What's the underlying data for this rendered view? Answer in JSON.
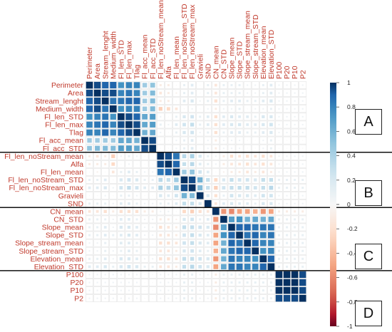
{
  "chart_data": {
    "type": "heatmap",
    "variables": [
      "Perimeter",
      "Area",
      "Stream_lenght",
      "Medium_width",
      "Fl_len_STD",
      "Fl_len_max",
      "Tlag",
      "Fl_acc_mean",
      "Fl_acc_STD",
      "Fl_len_noStream_mean",
      "Alfa",
      "Fl_len_mean",
      "Fl_len_noStream_STD",
      "Fl_len_noStream_max",
      "Gravieli",
      "SND",
      "CN_mean",
      "CN_STD",
      "Slope_mean",
      "Slope_STD",
      "Slope_stream_mean",
      "Slope_stream_STD",
      "Elevation_mean",
      "Elevation_STD",
      "P100",
      "P20",
      "P10",
      "P2"
    ],
    "groups": [
      {
        "label": "A",
        "members": [
          "Perimeter",
          "Area",
          "Stream_lenght",
          "Medium_width",
          "Fl_len_STD",
          "Fl_len_max",
          "Tlag",
          "Fl_acc_mean",
          "Fl_acc_STD"
        ]
      },
      {
        "label": "B",
        "members": [
          "Fl_len_noStream_mean",
          "Alfa",
          "Fl_len_mean",
          "Fl_len_noStream_STD",
          "Fl_len_noStream_max",
          "Gravieli",
          "SND"
        ]
      },
      {
        "label": "C",
        "members": [
          "CN_mean",
          "CN_STD",
          "Slope_mean",
          "Slope_STD",
          "Slope_stream_mean",
          "Slope_stream_STD",
          "Elevation_mean",
          "Elevation_STD"
        ]
      },
      {
        "label": "D",
        "members": [
          "P100",
          "P20",
          "P10",
          "P2"
        ]
      }
    ],
    "colorbar": {
      "range": [
        -1,
        1
      ],
      "ticks": [
        "1",
        "0.8",
        "0.6",
        "0.4",
        "0.2",
        "0",
        "-0.2",
        "-0.4",
        "-0.6",
        "-0.8",
        "-1"
      ],
      "low_color": "#67001f",
      "mid_color": "#f7f7f7",
      "high_color": "#053061"
    },
    "shape": "square sized by |r|",
    "label_color": "#c0392b",
    "correlations_lower_triangle": [
      [
        1.0
      ],
      [
        0.95,
        1.0
      ],
      [
        0.9,
        0.95,
        1.0
      ],
      [
        0.9,
        0.95,
        0.85,
        1.0
      ],
      [
        0.75,
        0.8,
        0.85,
        0.75,
        1.0
      ],
      [
        0.8,
        0.85,
        0.9,
        0.8,
        0.95,
        1.0
      ],
      [
        0.8,
        0.8,
        0.9,
        0.8,
        0.9,
        0.95,
        1.0
      ],
      [
        0.45,
        0.45,
        0.45,
        0.45,
        0.65,
        0.65,
        0.6,
        1.0
      ],
      [
        0.5,
        0.55,
        0.55,
        0.55,
        0.7,
        0.7,
        0.65,
        0.95,
        1.0
      ],
      [
        -0.1,
        -0.15,
        -0.1,
        -0.3,
        0.05,
        0.1,
        0.05,
        0.0,
        0.0,
        1.0
      ],
      [
        -0.1,
        -0.1,
        -0.1,
        -0.25,
        0.0,
        0.05,
        0.0,
        0.0,
        0.0,
        0.95,
        1.0
      ],
      [
        0.0,
        -0.05,
        0.0,
        -0.15,
        0.1,
        0.15,
        0.1,
        0.05,
        0.05,
        0.85,
        0.9,
        1.0
      ],
      [
        0.1,
        0.1,
        0.15,
        0.0,
        0.2,
        0.25,
        0.2,
        0.1,
        0.1,
        0.35,
        0.3,
        0.45,
        1.0
      ],
      [
        0.15,
        0.15,
        0.2,
        0.05,
        0.25,
        0.3,
        0.25,
        0.15,
        0.15,
        0.4,
        0.35,
        0.5,
        0.95,
        1.0
      ],
      [
        0.0,
        0.0,
        0.05,
        0.0,
        0.1,
        0.1,
        0.05,
        0.0,
        0.0,
        0.2,
        0.15,
        0.25,
        0.6,
        0.55,
        1.0
      ],
      [
        0.1,
        0.1,
        0.1,
        0.05,
        0.15,
        0.15,
        0.1,
        0.05,
        0.05,
        0.1,
        0.1,
        0.15,
        0.3,
        0.3,
        0.2,
        1.0
      ],
      [
        -0.15,
        -0.15,
        -0.2,
        -0.1,
        -0.2,
        -0.2,
        -0.2,
        -0.1,
        -0.1,
        0.05,
        0.05,
        0.0,
        -0.25,
        -0.3,
        -0.2,
        -0.15,
        1.0
      ],
      [
        0.1,
        0.1,
        0.1,
        0.05,
        0.15,
        0.15,
        0.1,
        0.05,
        0.05,
        -0.1,
        -0.1,
        -0.05,
        0.2,
        0.25,
        0.1,
        0.15,
        -0.55,
        1.0
      ],
      [
        0.1,
        0.1,
        0.15,
        0.05,
        0.2,
        0.2,
        0.15,
        0.05,
        0.05,
        -0.2,
        -0.15,
        -0.1,
        0.3,
        0.3,
        0.25,
        0.2,
        -0.6,
        0.7,
        1.0
      ],
      [
        0.1,
        0.1,
        0.15,
        0.1,
        0.15,
        0.2,
        0.15,
        0.05,
        0.05,
        -0.15,
        -0.15,
        -0.1,
        0.25,
        0.3,
        0.2,
        0.15,
        -0.5,
        0.75,
        0.9,
        1.0
      ],
      [
        0.05,
        0.05,
        0.1,
        0.0,
        0.15,
        0.15,
        0.1,
        0.0,
        0.0,
        -0.2,
        -0.2,
        -0.15,
        0.25,
        0.3,
        0.2,
        0.15,
        -0.5,
        0.6,
        0.9,
        0.85,
        1.0
      ],
      [
        0.05,
        0.05,
        0.1,
        0.05,
        0.1,
        0.15,
        0.1,
        0.0,
        0.0,
        -0.15,
        -0.15,
        -0.1,
        0.2,
        0.25,
        0.15,
        0.1,
        -0.45,
        0.65,
        0.85,
        0.9,
        0.9,
        1.0
      ],
      [
        0.1,
        0.1,
        0.15,
        0.05,
        0.2,
        0.2,
        0.15,
        0.05,
        0.05,
        -0.2,
        -0.2,
        -0.15,
        0.3,
        0.3,
        0.25,
        0.2,
        -0.55,
        0.6,
        0.85,
        0.8,
        0.8,
        0.75,
        1.0
      ],
      [
        0.15,
        0.15,
        0.2,
        0.1,
        0.2,
        0.25,
        0.2,
        0.1,
        0.1,
        -0.15,
        -0.15,
        -0.1,
        0.3,
        0.35,
        0.25,
        0.2,
        -0.5,
        0.65,
        0.85,
        0.85,
        0.8,
        0.8,
        0.9,
        1.0
      ],
      [
        0.05,
        0.05,
        0.05,
        0.05,
        0.05,
        0.05,
        0.05,
        0.0,
        0.0,
        0.05,
        0.05,
        0.05,
        0.1,
        0.1,
        0.05,
        0.05,
        -0.1,
        0.1,
        0.1,
        0.1,
        0.1,
        0.1,
        0.1,
        0.1,
        1.0
      ],
      [
        0.05,
        0.05,
        0.05,
        0.05,
        0.05,
        0.05,
        0.05,
        0.0,
        0.0,
        0.05,
        0.05,
        0.05,
        0.1,
        0.1,
        0.05,
        0.05,
        -0.1,
        0.1,
        0.1,
        0.1,
        0.1,
        0.1,
        0.1,
        0.1,
        1.0,
        1.0
      ],
      [
        0.05,
        0.05,
        0.05,
        0.05,
        0.05,
        0.05,
        0.05,
        0.0,
        0.0,
        0.05,
        0.05,
        0.05,
        0.1,
        0.1,
        0.05,
        0.05,
        -0.1,
        0.1,
        0.1,
        0.1,
        0.1,
        0.1,
        0.1,
        0.1,
        1.0,
        1.0,
        1.0
      ],
      [
        0.05,
        0.05,
        0.05,
        0.05,
        0.05,
        0.05,
        0.05,
        0.0,
        0.0,
        0.05,
        0.05,
        0.05,
        0.1,
        0.1,
        0.05,
        0.05,
        -0.1,
        0.1,
        0.1,
        0.1,
        0.1,
        0.1,
        0.1,
        0.1,
        0.95,
        0.95,
        0.95,
        1.0
      ]
    ]
  }
}
